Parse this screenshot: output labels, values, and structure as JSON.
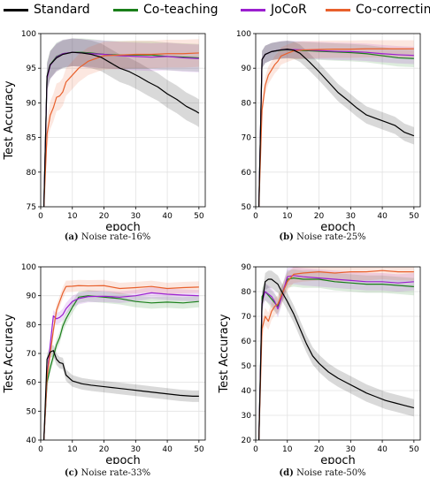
{
  "legend": [
    {
      "name": "Standard",
      "color": "#000000"
    },
    {
      "name": "Co-teaching",
      "color": "#1a7f1a"
    },
    {
      "name": "JoCoR",
      "color": "#9b1fcf"
    },
    {
      "name": "Co-correcting",
      "color": "#e8602c"
    }
  ],
  "chart_data": [
    {
      "type": "line",
      "caption_tag": "(a)",
      "caption_text": "Noise rate-16%",
      "xlabel": "epoch",
      "ylabel": "Test Accuracy",
      "xlim": [
        0,
        52
      ],
      "ylim": [
        75,
        100
      ],
      "xticks": [
        0,
        10,
        20,
        30,
        40,
        50
      ],
      "yticks": [
        75,
        80,
        85,
        90,
        95,
        100
      ],
      "grid": true,
      "series": [
        {
          "name": "Standard",
          "color": "#000000",
          "x": [
            1,
            2,
            3,
            5,
            7,
            10,
            13,
            16,
            19,
            22,
            25,
            28,
            31,
            34,
            37,
            40,
            43,
            46,
            49,
            50
          ],
          "y": [
            75,
            93.8,
            95.5,
            96.5,
            97,
            97.3,
            97.2,
            97,
            96.6,
            95.8,
            95,
            94.5,
            93.8,
            93,
            92.3,
            91.3,
            90.5,
            89.5,
            88.8,
            88.5
          ]
        },
        {
          "name": "Co-teaching",
          "color": "#1a7f1a",
          "x": [
            1,
            2,
            3,
            5,
            7,
            10,
            13,
            16,
            20,
            25,
            30,
            35,
            40,
            45,
            50
          ],
          "y": [
            75,
            93.8,
            95.5,
            96.7,
            97.1,
            97.3,
            97.3,
            97.2,
            97,
            96.9,
            96.9,
            96.9,
            96.7,
            96.6,
            96.5
          ]
        },
        {
          "name": "JoCoR",
          "color": "#9b1fcf",
          "x": [
            1,
            2,
            3,
            5,
            7,
            10,
            13,
            16,
            20,
            25,
            30,
            35,
            40,
            45,
            50
          ],
          "y": [
            75,
            93.5,
            95.4,
            96.6,
            97.1,
            97.3,
            97.2,
            97.1,
            97,
            96.8,
            96.7,
            96.6,
            96.7,
            96.5,
            96.4
          ]
        },
        {
          "name": "Co-correcting",
          "color": "#e8602c",
          "x": [
            1,
            2,
            3,
            4,
            5,
            6,
            7,
            8,
            10,
            12,
            15,
            18,
            20,
            25,
            30,
            35,
            40,
            45,
            50
          ],
          "y": [
            75,
            85.5,
            88.2,
            89.3,
            90.8,
            91,
            91.6,
            93,
            94,
            95,
            96,
            96.5,
            96.8,
            96.9,
            97,
            97,
            97.1,
            97.1,
            97.2
          ]
        }
      ]
    },
    {
      "type": "line",
      "caption_tag": "(b)",
      "caption_text": "Noise rate-25%",
      "xlabel": "epoch",
      "ylabel": "",
      "xlim": [
        0,
        52
      ],
      "ylim": [
        50,
        100
      ],
      "xticks": [
        0,
        10,
        20,
        30,
        40,
        50
      ],
      "yticks": [
        50,
        60,
        70,
        80,
        90,
        100
      ],
      "grid": true,
      "series": [
        {
          "name": "Standard",
          "color": "#000000",
          "x": [
            1,
            2,
            3,
            5,
            8,
            10,
            12,
            14,
            17,
            20,
            23,
            26,
            29,
            32,
            35,
            38,
            41,
            44,
            47,
            50
          ],
          "y": [
            50,
            92.5,
            94,
            94.8,
            95.3,
            95.5,
            95.2,
            94.3,
            91.8,
            89,
            86,
            83,
            80.8,
            78.5,
            76.5,
            75.5,
            74.5,
            73.5,
            71.5,
            70.5
          ]
        },
        {
          "name": "Co-teaching",
          "color": "#1a7f1a",
          "x": [
            1,
            2,
            3,
            5,
            8,
            10,
            15,
            20,
            25,
            30,
            35,
            40,
            45,
            50
          ],
          "y": [
            50,
            92.5,
            94,
            94.8,
            95.2,
            95.3,
            95.1,
            94.9,
            94.7,
            94.5,
            94.2,
            93.6,
            93,
            92.8
          ]
        },
        {
          "name": "JoCoR",
          "color": "#9b1fcf",
          "x": [
            1,
            2,
            3,
            5,
            8,
            10,
            15,
            20,
            25,
            30,
            35,
            40,
            45,
            50
          ],
          "y": [
            50,
            92.5,
            94,
            94.8,
            95.3,
            95.4,
            95.3,
            95.1,
            94.9,
            94.8,
            94.6,
            94.2,
            93.9,
            93.7
          ]
        },
        {
          "name": "Co-correcting",
          "color": "#e8602c",
          "x": [
            1,
            2,
            3,
            4,
            5,
            6,
            7,
            8,
            10,
            12,
            15,
            20,
            25,
            30,
            35,
            40,
            45,
            50
          ],
          "y": [
            50,
            78,
            85,
            88,
            89.5,
            91,
            92,
            93.5,
            94.3,
            95,
            95.3,
            95.4,
            95.5,
            95.5,
            95.6,
            95.6,
            95.6,
            95.6
          ]
        }
      ]
    },
    {
      "type": "line",
      "caption_tag": "(c)",
      "caption_text": "Noise rate-33%",
      "xlabel": "epoch",
      "ylabel": "Test Accuracy",
      "xlim": [
        0,
        52
      ],
      "ylim": [
        40,
        100
      ],
      "xticks": [
        0,
        10,
        20,
        30,
        40,
        50
      ],
      "yticks": [
        40,
        50,
        60,
        70,
        80,
        90,
        100
      ],
      "grid": true,
      "series": [
        {
          "name": "Standard",
          "color": "#000000",
          "x": [
            1,
            2,
            3,
            4,
            5,
            6,
            7,
            8,
            10,
            13,
            16,
            20,
            24,
            28,
            32,
            36,
            40,
            44,
            48,
            50
          ],
          "y": [
            40,
            68,
            70.5,
            71,
            68,
            66.8,
            66.5,
            62.5,
            60.5,
            59.5,
            59,
            58.5,
            58,
            57.5,
            57,
            56.5,
            56,
            55.5,
            55.2,
            55.2
          ]
        },
        {
          "name": "Co-teaching",
          "color": "#1a7f1a",
          "x": [
            1,
            2,
            3,
            4,
            5,
            6,
            7,
            8,
            10,
            12,
            15,
            20,
            25,
            30,
            35,
            40,
            45,
            50
          ],
          "y": [
            40,
            60,
            65,
            69,
            73,
            75.5,
            79.5,
            82,
            86,
            89.5,
            90,
            89.5,
            89,
            88,
            87.5,
            87.8,
            87.5,
            88
          ]
        },
        {
          "name": "JoCoR",
          "color": "#9b1fcf",
          "x": [
            1,
            2,
            3,
            4,
            5,
            6,
            7,
            8,
            10,
            12,
            15,
            20,
            25,
            30,
            35,
            40,
            45,
            50
          ],
          "y": [
            40,
            62,
            73,
            83,
            82,
            82.5,
            83.5,
            85.5,
            88,
            89,
            89.7,
            89.8,
            89.5,
            90,
            91,
            90.5,
            90.2,
            90
          ]
        },
        {
          "name": "Co-correcting",
          "color": "#e8602c",
          "x": [
            1,
            2,
            3,
            4,
            5,
            6,
            7,
            8,
            10,
            12,
            15,
            20,
            25,
            30,
            35,
            40,
            45,
            50
          ],
          "y": [
            40,
            62,
            70,
            78,
            85,
            88,
            91,
            93.2,
            93.3,
            93.5,
            93.4,
            93.5,
            92.5,
            92.8,
            93.2,
            92.5,
            92.8,
            93
          ]
        }
      ]
    },
    {
      "type": "line",
      "caption_tag": "(d)",
      "caption_text": "Noise rate-50%",
      "xlabel": "epoch",
      "ylabel": "Test Accuracy",
      "xlim": [
        0,
        52
      ],
      "ylim": [
        20,
        90
      ],
      "xticks": [
        0,
        10,
        20,
        30,
        40,
        50
      ],
      "yticks": [
        20,
        30,
        40,
        50,
        60,
        70,
        80,
        90
      ],
      "grid": true,
      "series": [
        {
          "name": "Standard",
          "color": "#000000",
          "x": [
            1,
            2,
            3,
            4,
            5,
            6,
            7,
            8,
            10,
            12,
            14,
            16,
            18,
            20,
            23,
            26,
            29,
            32,
            35,
            38,
            41,
            44,
            47,
            50
          ],
          "y": [
            20,
            75,
            84,
            85,
            85,
            84,
            83,
            80.5,
            76,
            71,
            65,
            59,
            54,
            51,
            47.5,
            45,
            43,
            41,
            39,
            37.5,
            36,
            35,
            34,
            33
          ]
        },
        {
          "name": "Co-teaching",
          "color": "#1a7f1a",
          "x": [
            1,
            2,
            3,
            4,
            5,
            6,
            7,
            8,
            10,
            12,
            15,
            20,
            25,
            30,
            35,
            40,
            45,
            50
          ],
          "y": [
            20,
            78,
            80,
            78.5,
            77,
            75.5,
            74,
            78,
            85,
            85.5,
            85,
            85,
            84,
            83.5,
            83,
            83,
            82.5,
            82
          ]
        },
        {
          "name": "JoCoR",
          "color": "#9b1fcf",
          "x": [
            1,
            2,
            3,
            4,
            5,
            6,
            7,
            8,
            10,
            12,
            15,
            20,
            25,
            30,
            35,
            40,
            45,
            50
          ],
          "y": [
            20,
            76,
            80,
            79,
            78,
            76,
            73,
            77,
            86,
            86.5,
            86,
            85.5,
            85,
            84.5,
            84,
            84,
            83.5,
            84
          ]
        },
        {
          "name": "Co-correcting",
          "color": "#e8602c",
          "x": [
            1,
            2,
            3,
            4,
            5,
            6,
            7,
            8,
            10,
            12,
            15,
            20,
            25,
            30,
            35,
            40,
            45,
            50
          ],
          "y": [
            20,
            65,
            70,
            68,
            72,
            74,
            75,
            78,
            84,
            87,
            87.5,
            88,
            87.5,
            88,
            88,
            88.5,
            88,
            88
          ]
        }
      ]
    }
  ]
}
